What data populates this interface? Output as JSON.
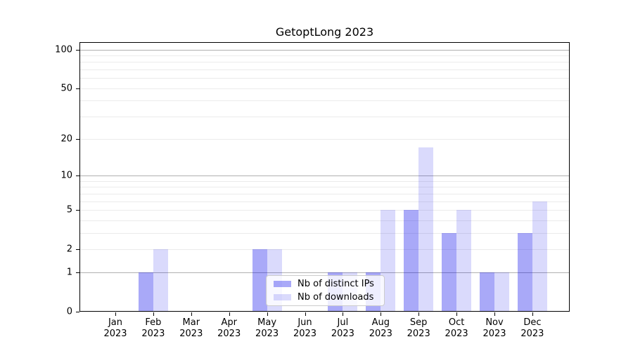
{
  "chart_data": {
    "type": "bar",
    "title": "GetoptLong 2023",
    "categories": [
      "Jan",
      "Feb",
      "Mar",
      "Apr",
      "May",
      "Jun",
      "Jul",
      "Aug",
      "Sep",
      "Oct",
      "Nov",
      "Dec"
    ],
    "year": "2023",
    "series": [
      {
        "name": "Nb of distinct IPs",
        "color": "rgba(10,10,235,0.35)",
        "values": [
          0,
          1,
          0,
          0,
          2,
          0,
          1,
          1,
          5,
          3,
          1,
          3
        ]
      },
      {
        "name": "Nb of downloads",
        "color": "rgba(10,10,235,0.15)",
        "values": [
          0,
          2,
          0,
          0,
          2,
          0,
          1,
          5,
          17,
          5,
          1,
          6
        ]
      }
    ],
    "yscale": "log1p",
    "ylim": [
      0,
      114
    ],
    "yticks": [
      0,
      1,
      2,
      5,
      10,
      20,
      50,
      100
    ],
    "yticks_major_grid": [
      1,
      10,
      100
    ],
    "yticks_minor_grid": [
      2,
      3,
      4,
      5,
      6,
      7,
      8,
      9,
      20,
      30,
      40,
      50,
      60,
      70,
      80,
      90
    ],
    "grid": "horizontal",
    "legend_position": "lower center",
    "colors": {
      "grid_major": "#b0b0b0",
      "grid_minor": "#ebebeb",
      "axis": "#000000",
      "text": "#000000",
      "legend_border": "#cccccc",
      "legend_bg": "rgba(255,255,255,0.8)"
    }
  }
}
